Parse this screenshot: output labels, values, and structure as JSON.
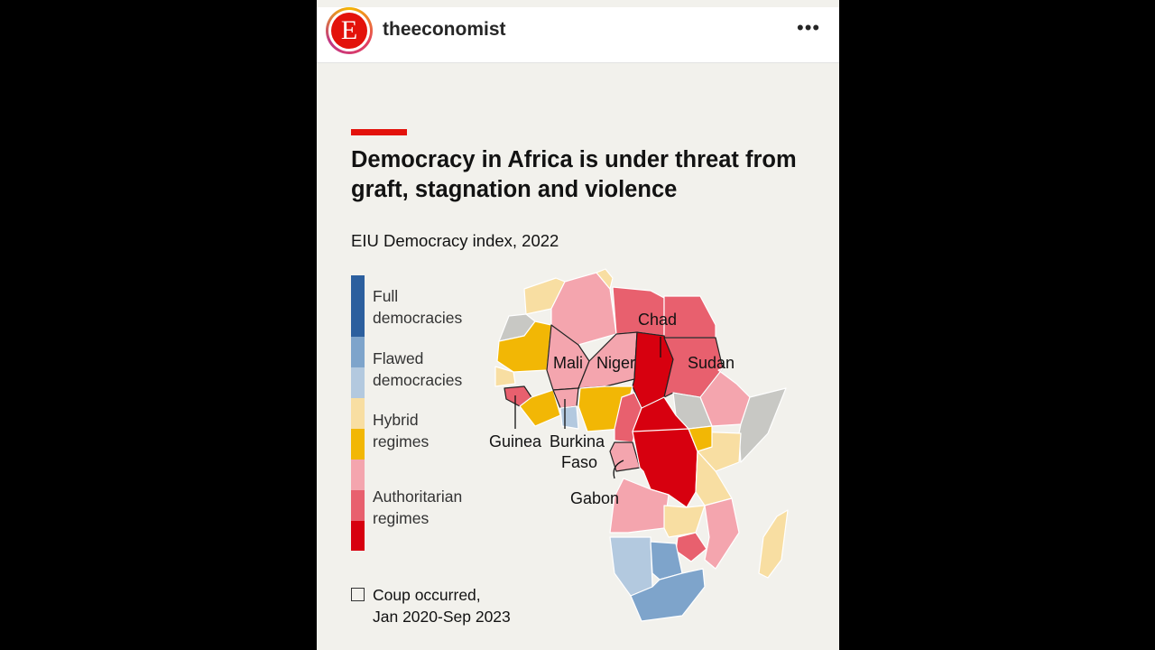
{
  "post": {
    "username": "theeconomist",
    "avatar_letter": "E",
    "more_label": "•••"
  },
  "graphic": {
    "headline": "Democracy in Africa is under threat from graft, stagnation and violence",
    "subtitle": "EIU Democracy index, 2022",
    "legend": [
      {
        "label_line1": "Full",
        "label_line2": "democracies",
        "colors": [
          "#2c5f9e"
        ]
      },
      {
        "label_line1": "Flawed",
        "label_line2": "democracies",
        "colors": [
          "#7ea4cb",
          "#b3c9df"
        ]
      },
      {
        "label_line1": "Hybrid",
        "label_line2": "regimes",
        "colors": [
          "#f8dea2",
          "#f2b705"
        ]
      },
      {
        "label_line1": "Authoritarian",
        "label_line2": "regimes",
        "colors": [
          "#f4a5ae",
          "#e8606e",
          "#d7000f"
        ]
      }
    ],
    "coup_label_line1": "Coup occurred,",
    "coup_label_line2": "Jan 2020-Sep 2023",
    "map_labels": {
      "chad": "Chad",
      "sudan": "Sudan",
      "mali": "Mali",
      "niger": "Niger",
      "guinea": "Guinea",
      "burkina_line1": "Burkina",
      "burkina_line2": "Faso",
      "gabon": "Gabon"
    }
  }
}
